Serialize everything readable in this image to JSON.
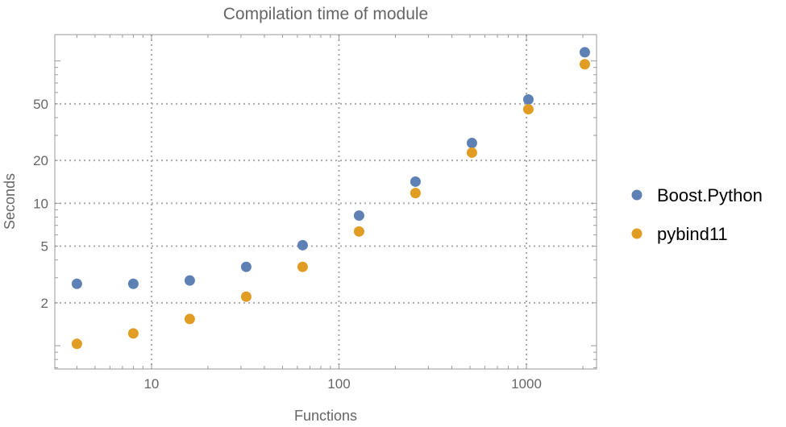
{
  "chart_data": {
    "type": "scatter",
    "title": "Compilation time of module",
    "xlabel": "Functions",
    "ylabel": "Seconds",
    "xscale": "log",
    "yscale": "log",
    "xlim": [
      3.05,
      2366
    ],
    "ylim": [
      0.686,
      153
    ],
    "grid": true,
    "legend_position": "right",
    "x_ticks": [
      10,
      100,
      1000
    ],
    "x_tick_labels": [
      "10",
      "100",
      "1000"
    ],
    "y_ticks": [
      2,
      5,
      10,
      20,
      50
    ],
    "y_tick_labels": [
      "2",
      "5",
      "10",
      "20",
      "50"
    ],
    "x": [
      4,
      8,
      16,
      32,
      64,
      128,
      256,
      512,
      1024,
      2048
    ],
    "series": [
      {
        "name": "Boost.Python",
        "color": "#5e81b5",
        "values": [
          2.72,
          2.72,
          2.87,
          3.58,
          5.08,
          8.2,
          14.2,
          26.5,
          53.6,
          115
        ]
      },
      {
        "name": "pybind11",
        "color": "#e19c24",
        "values": [
          1.03,
          1.22,
          1.54,
          2.21,
          3.58,
          6.34,
          11.8,
          22.7,
          45.8,
          94.8
        ]
      }
    ]
  }
}
